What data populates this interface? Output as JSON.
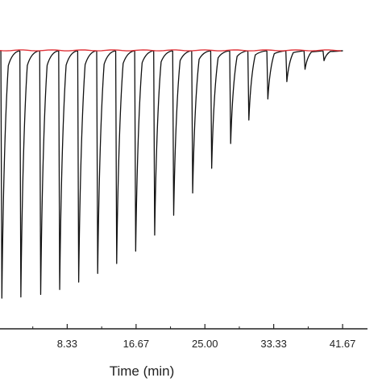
{
  "chart_data": {
    "type": "line",
    "xlabel": "Time (min)",
    "ylabel": "",
    "xlim": [
      0,
      45
    ],
    "x_ticks": [
      "8.33",
      "16.67",
      "25.00",
      "33.33",
      "41.67"
    ],
    "x_tick_values": [
      8.33,
      16.67,
      25.0,
      33.33,
      41.67
    ],
    "grid": false,
    "legend": "none",
    "baseline_level": 1.0,
    "baseline_end_time": 41.7,
    "spike_depth_scale": "relative, 1.00 = deepest visible peak",
    "injections": [
      {
        "time": 0.3,
        "depth": 1.0
      },
      {
        "time": 2.6,
        "depth": 0.995
      },
      {
        "time": 5.0,
        "depth": 0.985
      },
      {
        "time": 7.3,
        "depth": 0.965
      },
      {
        "time": 9.6,
        "depth": 0.935
      },
      {
        "time": 11.9,
        "depth": 0.9
      },
      {
        "time": 14.2,
        "depth": 0.86
      },
      {
        "time": 16.5,
        "depth": 0.81
      },
      {
        "time": 18.8,
        "depth": 0.745
      },
      {
        "time": 21.1,
        "depth": 0.665
      },
      {
        "time": 23.4,
        "depth": 0.575
      },
      {
        "time": 25.7,
        "depth": 0.475
      },
      {
        "time": 28.0,
        "depth": 0.375
      },
      {
        "time": 30.2,
        "depth": 0.28
      },
      {
        "time": 32.5,
        "depth": 0.195
      },
      {
        "time": 34.8,
        "depth": 0.125
      },
      {
        "time": 37.0,
        "depth": 0.075
      },
      {
        "time": 39.3,
        "depth": 0.04
      }
    ],
    "colors": {
      "raw_trace": "#111111",
      "baseline_fit": "#e0343a",
      "axis": "#222222"
    }
  }
}
